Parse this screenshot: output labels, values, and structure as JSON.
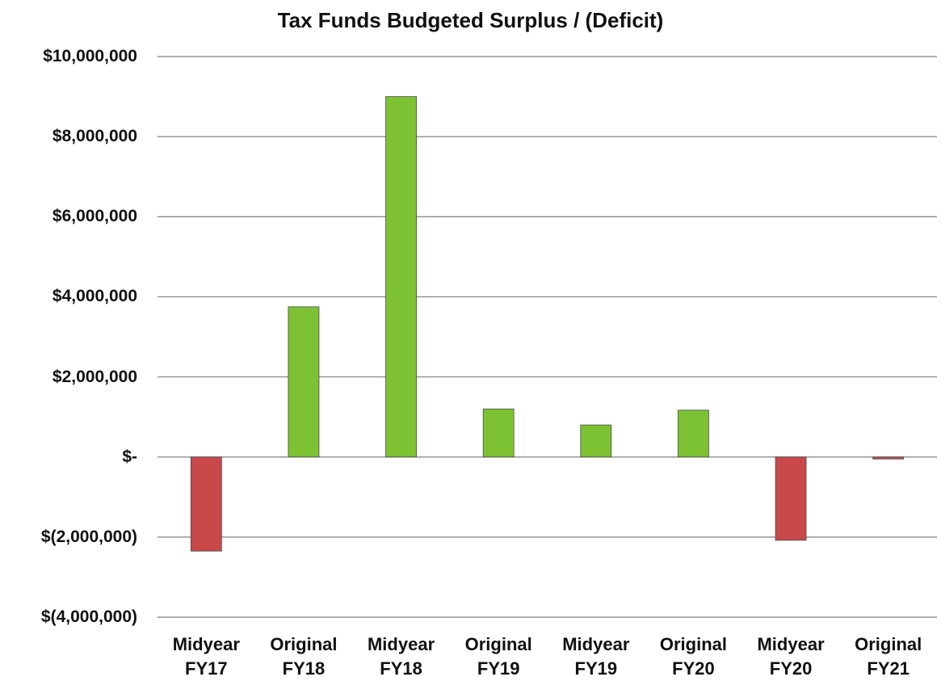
{
  "chart_data": {
    "type": "bar",
    "title": "Tax Funds Budgeted Surplus / (Deficit)",
    "categories": [
      "Midyear\nFY17",
      "Original\nFY18",
      "Midyear\nFY18",
      "Original\nFY19",
      "Midyear\nFY19",
      "Original\nFY20",
      "Midyear\nFY20",
      "Original\nFY21"
    ],
    "values": [
      -2350000,
      3750000,
      9000000,
      1200000,
      800000,
      1170000,
      -2080000,
      -50000
    ],
    "colors": [
      "#c9484a",
      "#7dc233",
      "#7dc233",
      "#7dc233",
      "#7dc233",
      "#7dc233",
      "#c9484a",
      "#c9484a"
    ],
    "ylim": [
      -4000000,
      10000000
    ],
    "yticks": [
      {
        "value": -4000000,
        "label": "$(4,000,000)"
      },
      {
        "value": -2000000,
        "label": "$(2,000,000)"
      },
      {
        "value": 0,
        "label": "$-"
      },
      {
        "value": 2000000,
        "label": "$2,000,000"
      },
      {
        "value": 4000000,
        "label": "$4,000,000"
      },
      {
        "value": 6000000,
        "label": "$6,000,000"
      },
      {
        "value": 8000000,
        "label": "$8,000,000"
      },
      {
        "value": 10000000,
        "label": "$10,000,000"
      }
    ],
    "grid": true
  }
}
